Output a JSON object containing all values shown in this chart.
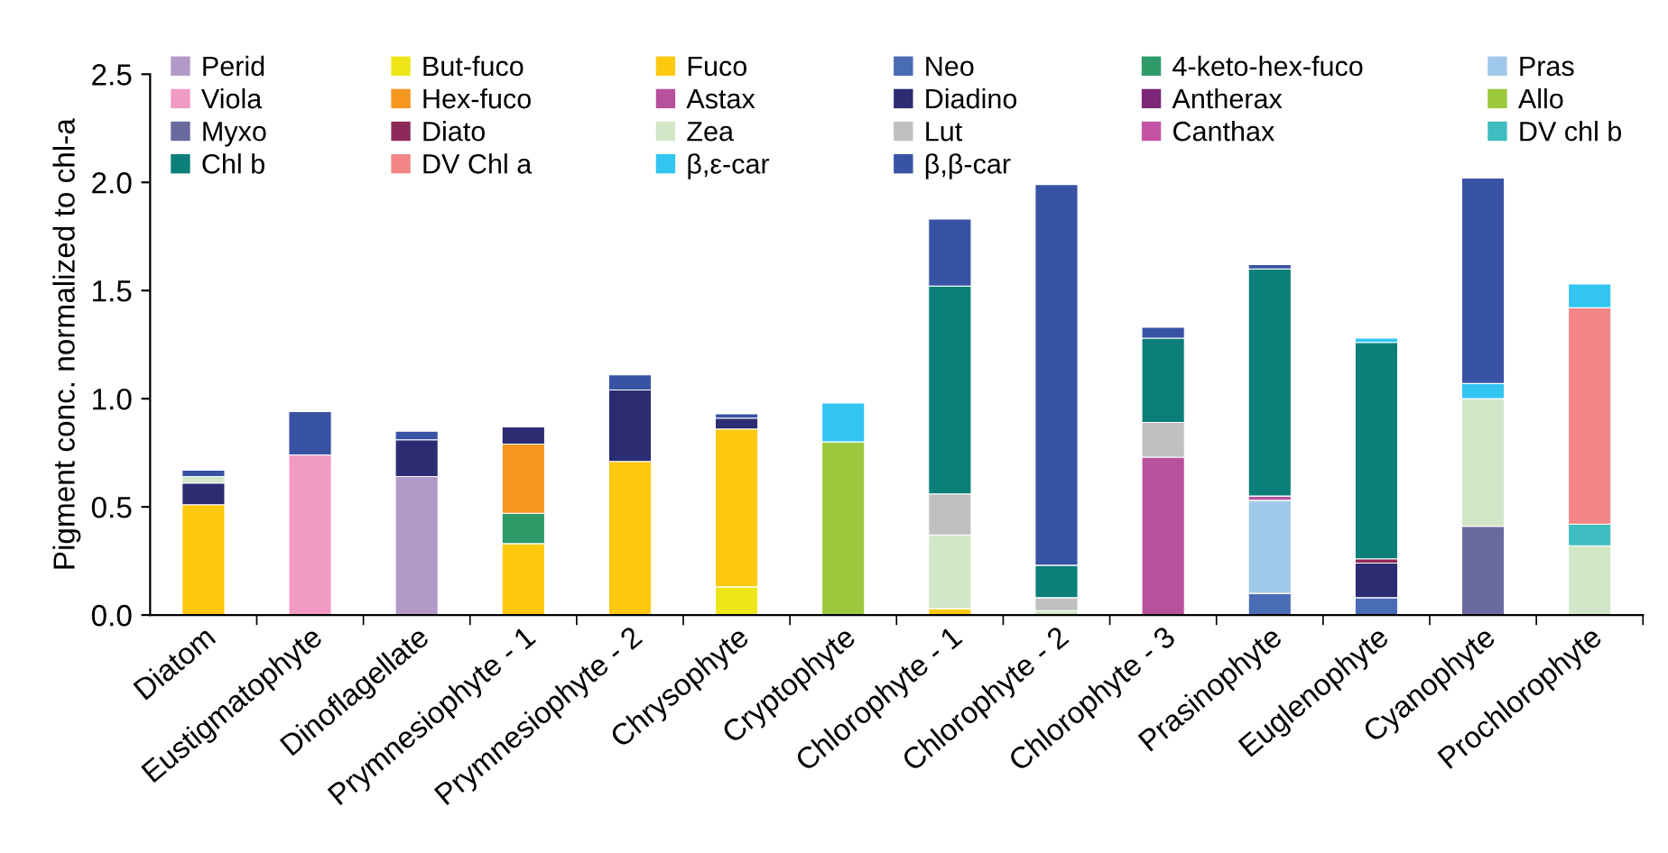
{
  "chart_data": {
    "type": "bar",
    "stacked": true,
    "ylabel": "Pigment conc. normalized to chl-a",
    "categories": [
      "Diatom",
      "Eustigmatophyte",
      "Dinoflagellate",
      "Prymnesiophyte - 1",
      "Prymnesiophyte - 2",
      "Chrysophyte",
      "Cryptophyte",
      "Chlorophyte - 1",
      "Chlorophyte - 2",
      "Chlorophyte - 3",
      "Prasinophyte",
      "Euglenophyte",
      "Cyanophyte",
      "Prochlorophyte"
    ],
    "ylim": [
      0,
      2.5
    ],
    "yticks": [
      {
        "value": 0,
        "label": "0.0"
      },
      {
        "value": 0.5,
        "label": "0.5"
      },
      {
        "value": 1,
        "label": "1.0"
      },
      {
        "value": 1.5,
        "label": "1.5"
      },
      {
        "value": 2,
        "label": "2.0"
      },
      {
        "value": 2.5,
        "label": "2.5"
      }
    ],
    "legend": "top",
    "grid": false,
    "series": [
      {
        "name": "Perid",
        "color": "#b399c8",
        "values": [
          null,
          null,
          0.64,
          null,
          null,
          null,
          null,
          null,
          null,
          null,
          null,
          null,
          null,
          null
        ]
      },
      {
        "name": "But-fuco",
        "color": "#eee619",
        "values": [
          null,
          null,
          null,
          null,
          null,
          0.13,
          null,
          null,
          null,
          null,
          null,
          null,
          null,
          null
        ]
      },
      {
        "name": "Fuco",
        "color": "#fdc90f",
        "values": [
          0.51,
          null,
          null,
          0.33,
          0.71,
          0.73,
          null,
          0.03,
          null,
          null,
          null,
          null,
          null,
          null
        ]
      },
      {
        "name": "Neo",
        "color": "#4a6bb5",
        "values": [
          null,
          null,
          null,
          null,
          null,
          null,
          null,
          null,
          null,
          null,
          0.1,
          0.08,
          null,
          null
        ]
      },
      {
        "name": "4-keto-hex-fuco",
        "color": "#2e9b68",
        "values": [
          null,
          null,
          null,
          0.14,
          null,
          null,
          null,
          null,
          null,
          null,
          null,
          null,
          null,
          null
        ]
      },
      {
        "name": "Pras",
        "color": "#a0c8ea",
        "values": [
          null,
          null,
          null,
          null,
          null,
          null,
          null,
          null,
          null,
          null,
          0.43,
          null,
          null,
          null
        ]
      },
      {
        "name": "Viola",
        "color": "#f09ac4",
        "values": [
          null,
          0.74,
          null,
          null,
          null,
          null,
          null,
          null,
          null,
          null,
          null,
          null,
          null,
          null
        ]
      },
      {
        "name": "Hex-fuco",
        "color": "#f5961e",
        "values": [
          null,
          null,
          null,
          0.32,
          null,
          null,
          null,
          null,
          null,
          null,
          null,
          null,
          null,
          null
        ]
      },
      {
        "name": "Astax",
        "color": "#b8519d",
        "values": [
          null,
          null,
          null,
          null,
          null,
          null,
          null,
          null,
          null,
          0.73,
          0.02,
          null,
          null,
          null
        ]
      },
      {
        "name": "Diadino",
        "color": "#2b2c72",
        "values": [
          0.1,
          null,
          0.17,
          0.08,
          0.33,
          0.05,
          null,
          null,
          null,
          null,
          null,
          0.16,
          null,
          null
        ]
      },
      {
        "name": "Antherax",
        "color": "#7b2677",
        "values": [
          null,
          null,
          null,
          null,
          null,
          null,
          null,
          null,
          null,
          null,
          null,
          null,
          null,
          null
        ]
      },
      {
        "name": "Allo",
        "color": "#9bc83c",
        "values": [
          null,
          null,
          null,
          null,
          null,
          null,
          0.8,
          null,
          null,
          null,
          null,
          null,
          null,
          null
        ]
      },
      {
        "name": "Myxo",
        "color": "#686aa0",
        "values": [
          null,
          null,
          null,
          null,
          null,
          null,
          null,
          null,
          null,
          null,
          null,
          null,
          0.41,
          null
        ]
      },
      {
        "name": "Diato",
        "color": "#8e2a5a",
        "values": [
          null,
          null,
          null,
          null,
          null,
          null,
          null,
          null,
          null,
          null,
          null,
          0.02,
          null,
          null
        ]
      },
      {
        "name": "Zea",
        "color": "#d2e6c8",
        "values": [
          0.03,
          null,
          null,
          null,
          null,
          null,
          null,
          0.34,
          0.02,
          null,
          null,
          null,
          0.59,
          0.32
        ]
      },
      {
        "name": "Lut",
        "color": "#c0c0c0",
        "values": [
          null,
          null,
          null,
          null,
          null,
          null,
          null,
          0.19,
          0.06,
          0.16,
          null,
          null,
          null,
          null
        ]
      },
      {
        "name": "Canthax",
        "color": "#c453a5",
        "values": [
          null,
          null,
          null,
          null,
          null,
          null,
          null,
          null,
          null,
          null,
          null,
          null,
          null,
          null
        ]
      },
      {
        "name": "DV chl b",
        "color": "#3fbcc0",
        "values": [
          null,
          null,
          null,
          null,
          null,
          null,
          null,
          null,
          null,
          null,
          null,
          null,
          null,
          0.1
        ]
      },
      {
        "name": "Chl b",
        "color": "#0c7f7a",
        "values": [
          null,
          null,
          null,
          null,
          null,
          null,
          null,
          0.96,
          0.15,
          0.39,
          1.05,
          1.0,
          null,
          null
        ]
      },
      {
        "name": "DV Chl a",
        "color": "#f28585",
        "values": [
          null,
          null,
          null,
          null,
          null,
          null,
          null,
          null,
          null,
          null,
          null,
          null,
          null,
          1.0
        ]
      },
      {
        "name": "β,ε-car",
        "color": "#33c5f2",
        "values": [
          null,
          null,
          null,
          null,
          null,
          null,
          0.18,
          null,
          null,
          null,
          null,
          0.02,
          0.07,
          0.11
        ]
      },
      {
        "name": "β,β-car",
        "color": "#3953a4",
        "values": [
          0.03,
          0.2,
          0.04,
          null,
          0.07,
          0.02,
          null,
          0.31,
          1.76,
          0.05,
          0.02,
          null,
          0.95,
          null
        ]
      }
    ]
  }
}
